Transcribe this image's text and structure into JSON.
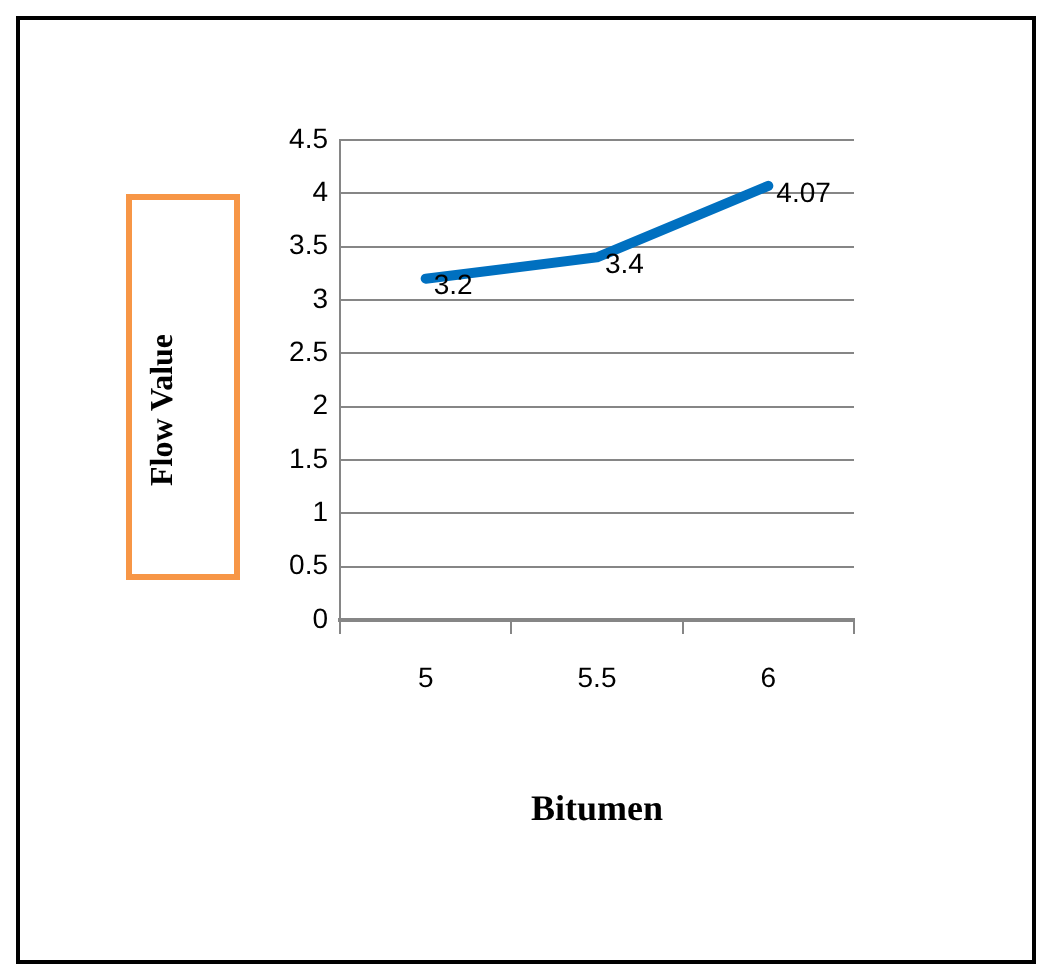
{
  "chart_data": {
    "type": "line",
    "xlabel": "Bitumen",
    "ylabel": "Flow Value",
    "categories": [
      "5",
      "5.5",
      "6"
    ],
    "series": [
      {
        "color": "#0070c0",
        "values": [
          3.2,
          3.4,
          4.07
        ]
      }
    ],
    "ylim": [
      0,
      4.5
    ],
    "yticks": [
      0,
      0.5,
      1,
      1.5,
      2,
      2.5,
      3,
      3.5,
      4,
      4.5
    ],
    "grid": "y",
    "legend": false,
    "marker": "none",
    "data_labels": true
  }
}
